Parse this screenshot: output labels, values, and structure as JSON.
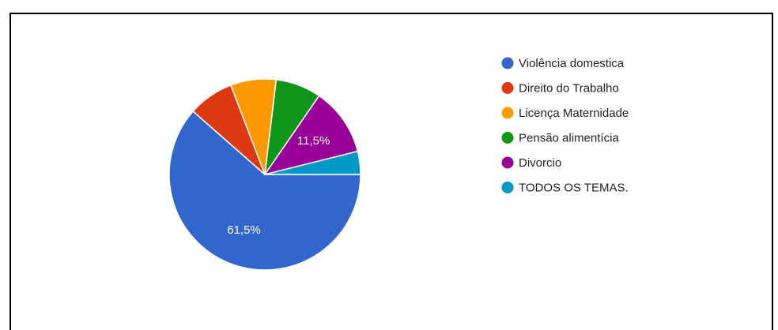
{
  "chart_data": {
    "type": "pie",
    "title": "",
    "legend_position": "right",
    "slices": [
      {
        "label": "Violência domestica",
        "value": 61.5,
        "color": "#3366cc",
        "data_label": "61,5%"
      },
      {
        "label": "Direito do Trabalho",
        "value": 7.7,
        "color": "#dc3912",
        "data_label": ""
      },
      {
        "label": "Licença Maternidade",
        "value": 7.7,
        "color": "#ff9900",
        "data_label": ""
      },
      {
        "label": "Pensão alimentícia",
        "value": 7.7,
        "color": "#109618",
        "data_label": ""
      },
      {
        "label": "Divorcio",
        "value": 11.5,
        "color": "#990099",
        "data_label": "11,5%"
      },
      {
        "label": "TODOS OS TEMAS.",
        "value": 3.9,
        "color": "#0099c6",
        "data_label": ""
      }
    ]
  }
}
